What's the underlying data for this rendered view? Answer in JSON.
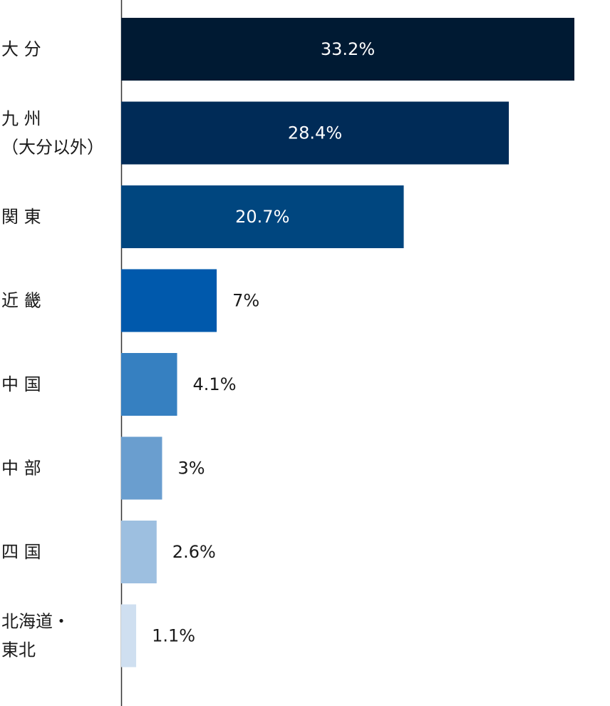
{
  "chart_data": {
    "type": "bar",
    "orientation": "horizontal",
    "categories": [
      [
        "大 分"
      ],
      [
        "九 州",
        "（大分以外）"
      ],
      [
        "関 東"
      ],
      [
        "近 畿"
      ],
      [
        "中 国"
      ],
      [
        "中 部"
      ],
      [
        "四 国"
      ],
      [
        "北海道・",
        "東北"
      ]
    ],
    "values": [
      33.2,
      28.4,
      20.7,
      7,
      4.1,
      3,
      2.6,
      1.1
    ],
    "value_labels": [
      "33.2%",
      "28.4%",
      "20.7%",
      "7%",
      "4.1%",
      "3%",
      "2.6%",
      "1.1%"
    ],
    "colors": [
      "#001a33",
      "#002b57",
      "#00467f",
      "#0059ac",
      "#3680c1",
      "#6a9ecf",
      "#9dbfe0",
      "#cfdff0"
    ],
    "xlim": [
      0,
      33.2
    ],
    "grid": false,
    "legend": "none"
  }
}
